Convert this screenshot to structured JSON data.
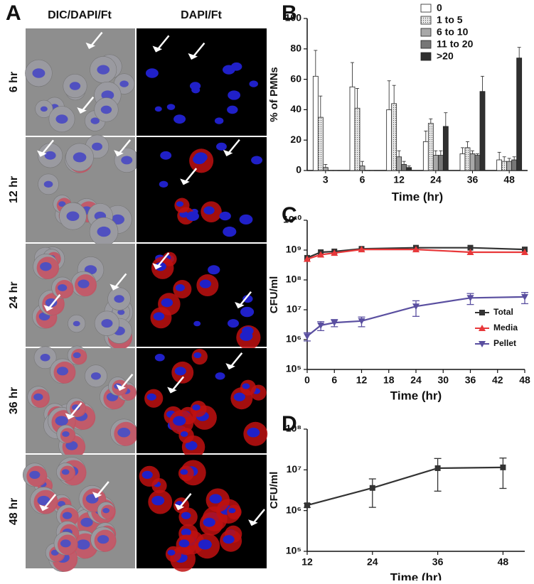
{
  "images": {
    "panel": "A",
    "columns": [
      "DIC/DAPI/Ft",
      "DAPI/Ft"
    ],
    "rows": [
      "6 hr",
      "12 hr",
      "24 hr",
      "36 hr",
      "48 hr"
    ]
  },
  "chart_data": [
    {
      "panel": "B",
      "type": "bar",
      "ylabel": "% of PMNs",
      "xlabel": "Time (hr)",
      "categories": [
        "3",
        "6",
        "12",
        "24",
        "36",
        "48"
      ],
      "ylim": [
        0,
        100
      ],
      "yticks": [
        0,
        20,
        40,
        60,
        80,
        100
      ],
      "legend": "upper right",
      "series": [
        {
          "name": "0",
          "color": "#ffffff",
          "values": [
            62,
            55,
            40,
            19,
            11,
            7
          ],
          "errors": [
            17,
            16,
            19,
            7,
            4,
            5
          ]
        },
        {
          "name": "1 to 5",
          "color": "#e6e6e6",
          "values": [
            35,
            41,
            44,
            31,
            15,
            6
          ],
          "errors": [
            14,
            13,
            12,
            3,
            4,
            3
          ]
        },
        {
          "name": "6 to 10",
          "color": "#a8a8a8",
          "values": [
            2,
            3,
            9,
            10,
            11,
            6
          ],
          "errors": [
            2,
            3,
            4,
            3,
            2,
            2
          ]
        },
        {
          "name": "11 to 20",
          "color": "#777777",
          "values": [
            0,
            0,
            4,
            10,
            10,
            7
          ],
          "errors": [
            0,
            0,
            2,
            3,
            1,
            2
          ]
        },
        {
          "name": ">20",
          "color": "#303030",
          "values": [
            0,
            0,
            2,
            29,
            52,
            74
          ],
          "errors": [
            0,
            0,
            1,
            9,
            10,
            7
          ]
        }
      ]
    },
    {
      "panel": "C",
      "type": "line",
      "log_y": true,
      "ylabel": "CFU/ml",
      "xlabel": "Time (hr)",
      "x": [
        0,
        3,
        6,
        12,
        24,
        36,
        48
      ],
      "xlim": [
        0,
        48
      ],
      "xticks": [
        0,
        6,
        12,
        18,
        24,
        30,
        36,
        42,
        48
      ],
      "ylim": [
        100000,
        10000000000
      ],
      "yticks": [
        {
          "value": 100000,
          "label": "10⁵"
        },
        {
          "value": 1000000,
          "label": "10⁶"
        },
        {
          "value": 10000000,
          "label": "10⁷"
        },
        {
          "value": 100000000,
          "label": "10⁸"
        },
        {
          "value": 1000000000,
          "label": "10⁹"
        },
        {
          "value": 10000000000,
          "label": "10¹⁰"
        }
      ],
      "legend": "lower right",
      "series": [
        {
          "name": "Total",
          "color": "#333333",
          "marker": "square",
          "values": [
            550000000,
            850000000,
            900000000,
            1100000000,
            1200000000,
            1200000000,
            1050000000
          ]
        },
        {
          "name": "Media",
          "color": "#e8383a",
          "marker": "triangle",
          "values": [
            500000000,
            700000000,
            800000000,
            1050000000,
            1050000000,
            850000000,
            850000000
          ]
        },
        {
          "name": "Pellet",
          "color": "#5a4fa0",
          "marker": "triangle-down",
          "values": [
            1300000,
            3000000,
            3700000,
            4200000,
            13000000,
            25000000,
            27000000
          ],
          "errors": [
            400000,
            1000000,
            1000000,
            1500000,
            7000000,
            10000000,
            11000000
          ]
        }
      ]
    },
    {
      "panel": "D",
      "type": "line",
      "log_y": true,
      "ylabel": "CFU/ml",
      "xlabel": "Time (hr)",
      "x": [
        12,
        24,
        36,
        48
      ],
      "xlim": [
        12,
        52
      ],
      "xticks": [
        12,
        24,
        36,
        48
      ],
      "ylim": [
        100000,
        100000000
      ],
      "yticks": [
        {
          "value": 100000,
          "label": "10⁵"
        },
        {
          "value": 1000000,
          "label": "10⁶"
        },
        {
          "value": 10000000,
          "label": "10⁷"
        },
        {
          "value": 100000000,
          "label": "10⁸"
        }
      ],
      "color": "#333333",
      "marker": "square",
      "values": [
        1350000,
        3600000,
        11000000,
        11500000
      ],
      "errors": [
        150000,
        2400000,
        8000000,
        8000000
      ]
    }
  ]
}
